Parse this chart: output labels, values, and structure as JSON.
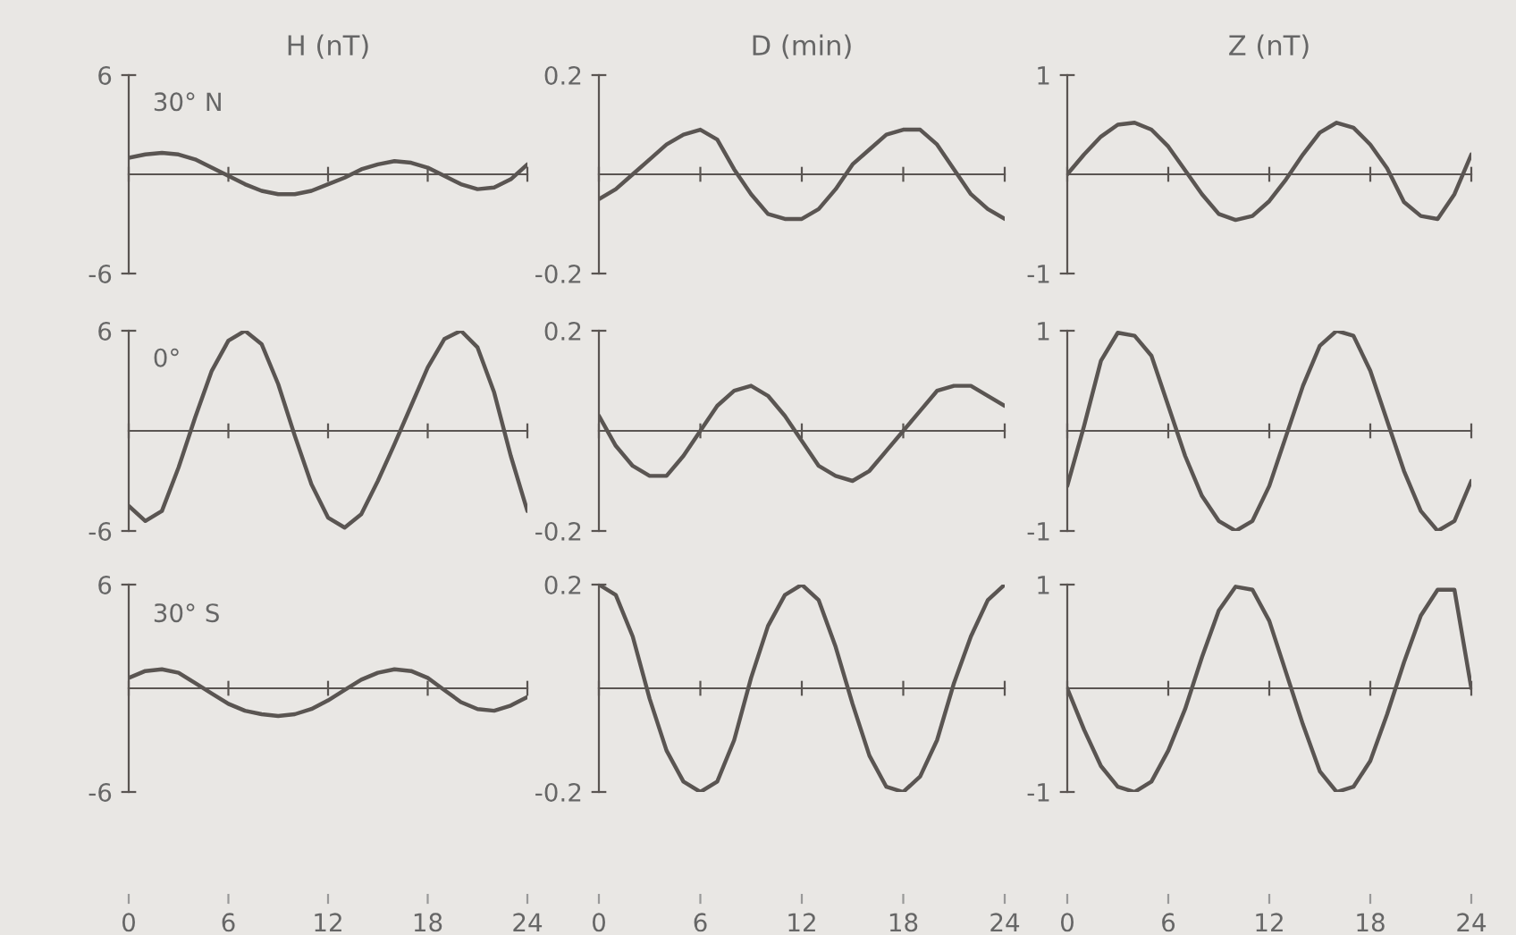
{
  "chart_data": [
    {
      "type": "line",
      "title": "H (nT)",
      "annotations": [
        "30° N"
      ],
      "x": [
        0,
        1,
        2,
        3,
        4,
        5,
        6,
        7,
        8,
        9,
        10,
        11,
        12,
        13,
        14,
        15,
        16,
        17,
        18,
        19,
        20,
        21,
        22,
        23,
        24
      ],
      "xlim": [
        0,
        24
      ],
      "xticks": [
        0,
        6,
        12,
        18,
        24
      ],
      "ylim": [
        -6,
        6
      ],
      "yticks": [
        {
          "value": -6,
          "label": "-6"
        },
        6
      ],
      "tick_labels": "y",
      "series": [
        {
          "color": "#5a5552",
          "values": [
            1.0,
            1.2,
            1.3,
            1.2,
            0.9,
            0.4,
            -0.1,
            -0.6,
            -1.0,
            -1.2,
            -1.2,
            -1.0,
            -0.6,
            -0.2,
            0.3,
            0.6,
            0.8,
            0.7,
            0.4,
            -0.1,
            -0.6,
            -0.9,
            -0.8,
            -0.3,
            0.6
          ]
        }
      ]
    },
    {
      "type": "line",
      "title": "D (min)",
      "x": [
        0,
        1,
        2,
        3,
        4,
        5,
        6,
        7,
        8,
        9,
        10,
        11,
        12,
        13,
        14,
        15,
        16,
        17,
        18,
        19,
        20,
        21,
        22,
        23,
        24
      ],
      "xlim": [
        0,
        24
      ],
      "xticks": [
        0,
        6,
        12,
        18,
        24
      ],
      "ylim": [
        -0.2,
        0.2
      ],
      "yticks": [
        {
          "value": -0.2,
          "label": "-0.2"
        },
        0.2
      ],
      "tick_labels": "y",
      "series": [
        {
          "color": "#5a5552",
          "values": [
            -0.05,
            -0.03,
            0.0,
            0.03,
            0.06,
            0.08,
            0.09,
            0.07,
            0.01,
            -0.04,
            -0.08,
            -0.09,
            -0.09,
            -0.07,
            -0.03,
            0.02,
            0.05,
            0.08,
            0.09,
            0.09,
            0.06,
            0.01,
            -0.04,
            -0.07,
            -0.09
          ]
        }
      ]
    },
    {
      "type": "line",
      "title": "Z (nT)",
      "x": [
        0,
        1,
        2,
        3,
        4,
        5,
        6,
        7,
        8,
        9,
        10,
        11,
        12,
        13,
        14,
        15,
        16,
        17,
        18,
        19,
        20,
        21,
        22,
        23,
        24
      ],
      "xlim": [
        0,
        24
      ],
      "xticks": [
        0,
        6,
        12,
        18,
        24
      ],
      "ylim": [
        -1,
        1
      ],
      "yticks": [
        {
          "value": -1,
          "label": "-1"
        },
        1
      ],
      "tick_labels": "y",
      "series": [
        {
          "color": "#5a5552",
          "values": [
            0,
            0.2,
            0.38,
            0.5,
            0.52,
            0.45,
            0.28,
            0.04,
            -0.2,
            -0.4,
            -0.46,
            -0.42,
            -0.27,
            -0.05,
            0.2,
            0.42,
            0.52,
            0.47,
            0.3,
            0.06,
            -0.28,
            -0.42,
            -0.45,
            -0.2,
            0.2
          ]
        }
      ]
    },
    {
      "type": "line",
      "annotations": [
        "0°"
      ],
      "x": [
        0,
        1,
        2,
        3,
        4,
        5,
        6,
        7,
        8,
        9,
        10,
        11,
        12,
        13,
        14,
        15,
        16,
        17,
        18,
        19,
        20,
        21,
        22,
        23,
        24
      ],
      "xlim": [
        0,
        24
      ],
      "xticks": [
        0,
        6,
        12,
        18,
        24
      ],
      "ylim": [
        -6,
        6
      ],
      "yticks": [
        {
          "value": -6,
          "label": "-6"
        },
        6
      ],
      "tick_labels": "y",
      "series": [
        {
          "color": "#5a5552",
          "values": [
            -4.5,
            -5.4,
            -4.8,
            -2.2,
            0.8,
            3.6,
            5.4,
            6.0,
            5.2,
            2.8,
            -0.3,
            -3.2,
            -5.2,
            -5.8,
            -5.0,
            -3.0,
            -0.8,
            1.5,
            3.8,
            5.5,
            6.0,
            5.0,
            2.3,
            -1.5,
            -4.8
          ]
        }
      ]
    },
    {
      "type": "line",
      "x": [
        0,
        1,
        2,
        3,
        4,
        5,
        6,
        7,
        8,
        9,
        10,
        11,
        12,
        13,
        14,
        15,
        16,
        17,
        18,
        19,
        20,
        21,
        22,
        23,
        24
      ],
      "xlim": [
        0,
        24
      ],
      "xticks": [
        0,
        6,
        12,
        18,
        24
      ],
      "ylim": [
        -0.2,
        0.2
      ],
      "yticks": [
        {
          "value": -0.2,
          "label": "-0.2"
        },
        0.2
      ],
      "tick_labels": "y",
      "series": [
        {
          "color": "#5a5552",
          "values": [
            0.03,
            -0.03,
            -0.07,
            -0.09,
            -0.09,
            -0.05,
            0.0,
            0.05,
            0.08,
            0.09,
            0.07,
            0.03,
            -0.02,
            -0.07,
            -0.09,
            -0.1,
            -0.08,
            -0.04,
            0.0,
            0.04,
            0.08,
            0.09,
            0.09,
            0.07,
            0.05
          ]
        }
      ]
    },
    {
      "type": "line",
      "x": [
        0,
        1,
        2,
        3,
        4,
        5,
        6,
        7,
        8,
        9,
        10,
        11,
        12,
        13,
        14,
        15,
        16,
        17,
        18,
        19,
        20,
        21,
        22,
        23,
        24
      ],
      "xlim": [
        0,
        24
      ],
      "xticks": [
        0,
        6,
        12,
        18,
        24
      ],
      "ylim": [
        -1,
        1
      ],
      "yticks": [
        {
          "value": -1,
          "label": "-1"
        },
        1
      ],
      "tick_labels": "y",
      "series": [
        {
          "color": "#5a5552",
          "values": [
            -0.55,
            0.05,
            0.7,
            0.98,
            0.95,
            0.75,
            0.25,
            -0.25,
            -0.65,
            -0.9,
            -1.0,
            -0.9,
            -0.55,
            -0.05,
            0.45,
            0.85,
            1.0,
            0.95,
            0.6,
            0.1,
            -0.4,
            -0.8,
            -1.0,
            -0.9,
            -0.5
          ]
        }
      ]
    },
    {
      "type": "line",
      "annotations": [
        "30° S"
      ],
      "x": [
        0,
        1,
        2,
        3,
        4,
        5,
        6,
        7,
        8,
        9,
        10,
        11,
        12,
        13,
        14,
        15,
        16,
        17,
        18,
        19,
        20,
        21,
        22,
        23,
        24
      ],
      "xlim": [
        0,
        24
      ],
      "xticks": [
        0,
        6,
        12,
        18,
        24
      ],
      "ylim": [
        -6,
        6
      ],
      "yticks": [
        {
          "value": -6,
          "label": "-6"
        },
        6
      ],
      "series": [
        {
          "color": "#5a5552",
          "values": [
            0.6,
            1.0,
            1.1,
            0.9,
            0.3,
            -0.3,
            -0.9,
            -1.3,
            -1.5,
            -1.6,
            -1.5,
            -1.2,
            -0.7,
            -0.1,
            0.5,
            0.9,
            1.1,
            1.0,
            0.6,
            -0.1,
            -0.8,
            -1.2,
            -1.3,
            -1.0,
            -0.5
          ]
        }
      ]
    },
    {
      "type": "line",
      "x": [
        0,
        1,
        2,
        3,
        4,
        5,
        6,
        7,
        8,
        9,
        10,
        11,
        12,
        13,
        14,
        15,
        16,
        17,
        18,
        19,
        20,
        21,
        22,
        23,
        24
      ],
      "xlim": [
        0,
        24
      ],
      "xticks": [
        0,
        6,
        12,
        18,
        24
      ],
      "ylim": [
        -0.2,
        0.2
      ],
      "yticks": [
        {
          "value": -0.2,
          "label": "-0.2"
        },
        0.2
      ],
      "series": [
        {
          "color": "#5a5552",
          "values": [
            0.2,
            0.18,
            0.1,
            -0.02,
            -0.12,
            -0.18,
            -0.2,
            -0.18,
            -0.1,
            0.02,
            0.12,
            0.18,
            0.2,
            0.17,
            0.08,
            -0.03,
            -0.13,
            -0.19,
            -0.2,
            -0.17,
            -0.1,
            0.01,
            0.1,
            0.17,
            0.2
          ]
        }
      ]
    },
    {
      "type": "line",
      "x": [
        0,
        1,
        2,
        3,
        4,
        5,
        6,
        7,
        8,
        9,
        10,
        11,
        12,
        13,
        14,
        15,
        16,
        17,
        18,
        19,
        20,
        21,
        22,
        23,
        24
      ],
      "xlim": [
        0,
        24
      ],
      "xticks": [
        0,
        6,
        12,
        18,
        24
      ],
      "ylim": [
        -1,
        1
      ],
      "yticks": [
        {
          "value": -1,
          "label": "-1"
        },
        1
      ],
      "series": [
        {
          "color": "#5a5552",
          "values": [
            0,
            -0.4,
            -0.75,
            -0.95,
            -1.0,
            -0.9,
            -0.6,
            -0.2,
            0.3,
            0.75,
            0.98,
            0.95,
            0.65,
            0.15,
            -0.35,
            -0.8,
            -1.0,
            -0.95,
            -0.7,
            -0.25,
            0.25,
            0.7,
            0.95,
            0.95,
            0
          ]
        }
      ]
    }
  ]
}
